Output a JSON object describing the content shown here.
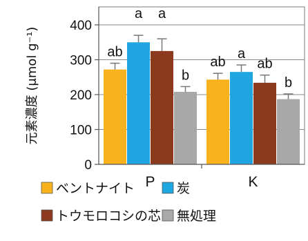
{
  "chart_data": {
    "type": "bar",
    "ylabel": "元素濃度 (μmol g⁻¹)",
    "ylim": [
      0,
      400
    ],
    "yticks": [
      0,
      100,
      200,
      300,
      400
    ],
    "grid": true,
    "categories": [
      "P",
      "K"
    ],
    "series": [
      {
        "name": "ベントナイト",
        "color": "#f7b21e",
        "values": [
          272,
          243
        ],
        "errors": [
          18,
          18
        ],
        "labels": [
          "ab",
          "ab"
        ]
      },
      {
        "name": "炭",
        "color": "#1fa6e0",
        "values": [
          350,
          265
        ],
        "errors": [
          20,
          20
        ],
        "labels": [
          "a",
          "a"
        ]
      },
      {
        "name": "トウモロコシの芯",
        "color": "#8b3a1e",
        "values": [
          325,
          234
        ],
        "errors": [
          35,
          22
        ],
        "labels": [
          "a",
          "ab"
        ]
      },
      {
        "name": "無処理",
        "color": "#a8a8a8",
        "values": [
          208,
          187
        ],
        "errors": [
          15,
          15
        ],
        "labels": [
          "b",
          "b"
        ]
      }
    ],
    "legend_position": "bottom"
  }
}
